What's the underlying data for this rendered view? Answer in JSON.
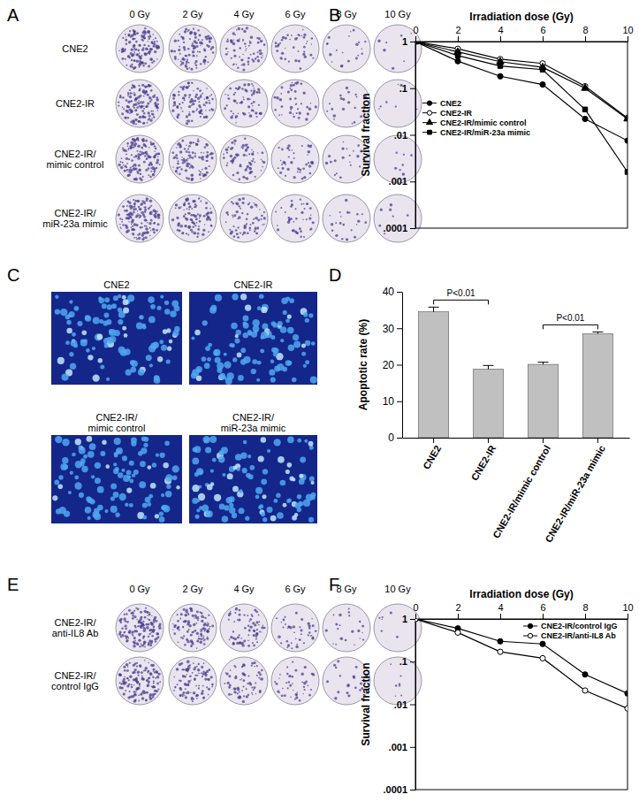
{
  "chart_data": [
    {
      "type": "line",
      "x_label": "Irradiation dose (Gy)",
      "y_label": "Survival fraction",
      "x": [
        0,
        2,
        4,
        6,
        8,
        10
      ],
      "xlim": [
        0,
        10
      ],
      "xticks": [
        0,
        2,
        4,
        6,
        8,
        10
      ],
      "ylim": [
        0.0001,
        1
      ],
      "yticks": [
        {
          "value": 0.0001,
          "label": ".0001"
        },
        {
          "value": 0.001,
          "label": ".001"
        },
        {
          "value": 0.01,
          "label": ".01"
        },
        {
          "value": 0.1,
          "label": ".1"
        },
        1
      ],
      "log": "y",
      "legend": "left",
      "series": [
        {
          "name": "CNE2",
          "color": "#000000",
          "marker": "circle",
          "values": [
            1,
            0.38,
            0.18,
            0.12,
            0.022,
            0.0075
          ]
        },
        {
          "name": "CNE2-IR",
          "color": "#000000",
          "marker": "circle-open",
          "values": [
            1,
            0.7,
            0.42,
            0.34,
            0.11,
            0.023
          ]
        },
        {
          "name": "CNE2-IR/mimic control",
          "color": "#000000",
          "marker": "triangle",
          "values": [
            1,
            0.6,
            0.37,
            0.28,
            0.1,
            0.022
          ]
        },
        {
          "name": "CNE2-IR/miR-23a mimic",
          "color": "#000000",
          "marker": "square",
          "values": [
            1,
            0.5,
            0.3,
            0.25,
            0.035,
            0.0016
          ]
        }
      ]
    },
    {
      "type": "bar",
      "y_label": "Apoptotic rate (%)",
      "categories": [
        "CNE2",
        "CNE2-IR",
        "CNE2-IR/mimic control",
        "CNE2-IR/miR-23a mimic"
      ],
      "values": [
        34.5,
        18.8,
        20.1,
        28.5
      ],
      "errors": [
        1.3,
        1.0,
        0.6,
        0.5
      ],
      "color": "#c0c0c0",
      "ylim": [
        0,
        40
      ],
      "yticks": [
        0,
        10,
        20,
        30,
        40
      ],
      "annotations": [
        {
          "text": "P<0.01",
          "from": 0,
          "to": 1
        },
        {
          "text": "P<0.01",
          "from": 2,
          "to": 3
        }
      ]
    },
    {
      "type": "line",
      "x_label": "Irradiation dose (Gy)",
      "y_label": "Survival fraction",
      "x": [
        0,
        2,
        4,
        6,
        8,
        10
      ],
      "xlim": [
        0,
        10
      ],
      "xticks": [
        0,
        2,
        4,
        6,
        8,
        10
      ],
      "ylim": [
        0.0001,
        1
      ],
      "yticks": [
        {
          "value": 0.0001,
          "label": ".0001"
        },
        {
          "value": 0.001,
          "label": ".001"
        },
        {
          "value": 0.01,
          "label": ".01"
        },
        {
          "value": 0.1,
          "label": ".1"
        },
        1
      ],
      "log": "y",
      "legend": "upper right",
      "series": [
        {
          "name": "CNE2-IR/control IgG",
          "color": "#000000",
          "marker": "circle",
          "values": [
            1,
            0.6,
            0.3,
            0.26,
            0.05,
            0.018
          ]
        },
        {
          "name": "CNE2-IR/anti-IL8 Ab",
          "color": "#000000",
          "marker": "circle-open",
          "values": [
            1,
            0.48,
            0.17,
            0.12,
            0.021,
            0.008
          ]
        }
      ]
    }
  ],
  "figure": {
    "panels": [
      "A",
      "B",
      "C",
      "D",
      "E",
      "F"
    ],
    "clonogenic_A": {
      "columns": [
        "0 Gy",
        "2 Gy",
        "4 Gy",
        "6 Gy",
        "8 Gy",
        "10 Gy"
      ],
      "rows": [
        [
          "CNE2"
        ],
        [
          "CNE2-IR"
        ],
        [
          "CNE2-IR/",
          "mimic control"
        ],
        [
          "CNE2-IR/",
          "miR-23a mimic"
        ]
      ]
    },
    "fluorescence_C": {
      "labels": [
        [
          "CNE2"
        ],
        [
          "CNE2-IR"
        ],
        [
          "CNE2-IR/",
          "mimic control"
        ],
        [
          "CNE2-IR/",
          "miR-23a mimic"
        ]
      ]
    },
    "clonogenic_E": {
      "columns": [
        "0 Gy",
        "2 Gy",
        "4 Gy",
        "6 Gy",
        "8 Gy",
        "10 Gy"
      ],
      "rows": [
        [
          "CNE2-IR/",
          "anti-IL8 Ab"
        ],
        [
          "CNE2-IR/",
          "control IgG"
        ]
      ]
    }
  }
}
